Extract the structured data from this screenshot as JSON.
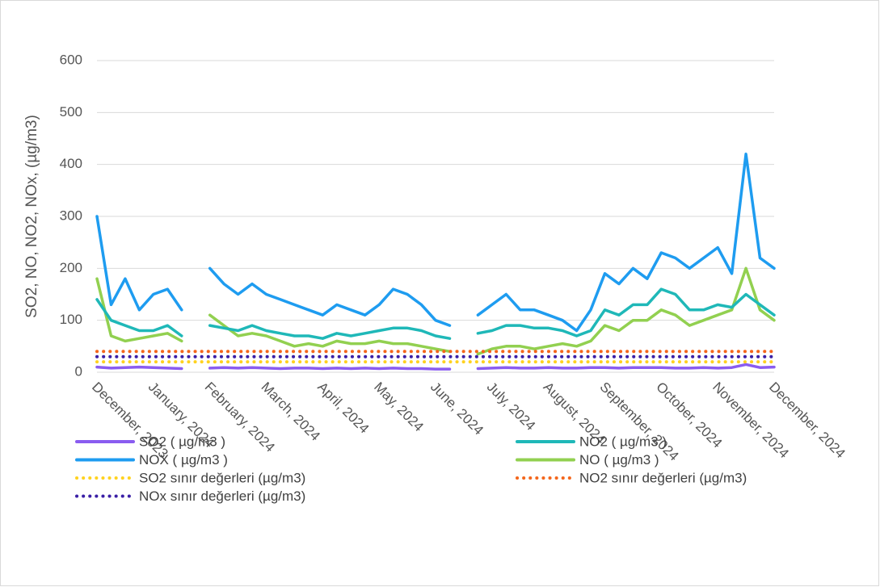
{
  "chart_data": {
    "type": "line",
    "y_label": "SO2, NO, NO2, NOx, (µg/m3)",
    "xticks": [
      "December, 2023",
      "January, 2024",
      "February, 2024",
      "March, 2024",
      "April, 2024",
      "May, 2024",
      "June, 2024",
      "July, 2024",
      "August, 2024",
      "September, 2024",
      "October, 2024",
      "November, 2024",
      "December, 2024"
    ],
    "ylim": [
      0,
      600
    ],
    "yticks": [
      0,
      100,
      200,
      300,
      400,
      500,
      600
    ],
    "grid": true,
    "series": [
      {
        "name": "SO2 ( µg/m3 )",
        "color": "#8a5cf0",
        "style": "solid",
        "values": [
          10,
          8,
          9,
          10,
          9,
          8,
          7,
          null,
          8,
          9,
          8,
          9,
          8,
          7,
          8,
          8,
          7,
          8,
          7,
          8,
          7,
          8,
          7,
          7,
          6,
          6,
          null,
          7,
          8,
          9,
          8,
          8,
          9,
          8,
          8,
          9,
          9,
          8,
          9,
          9,
          9,
          8,
          8,
          9,
          8,
          9,
          15,
          9,
          10
        ]
      },
      {
        "name": "NO2 ( µg/m3 )",
        "color": "#1fb8b8",
        "style": "solid",
        "values": [
          140,
          100,
          90,
          80,
          80,
          90,
          70,
          null,
          90,
          85,
          80,
          90,
          80,
          75,
          70,
          70,
          65,
          75,
          70,
          75,
          80,
          85,
          85,
          80,
          70,
          65,
          null,
          75,
          80,
          90,
          90,
          85,
          85,
          80,
          70,
          80,
          120,
          110,
          130,
          130,
          160,
          150,
          120,
          120,
          130,
          125,
          150,
          130,
          110
        ]
      },
      {
        "name": "NOX ( µg/m3 )",
        "color": "#1e9cf0",
        "style": "solid",
        "values": [
          300,
          130,
          180,
          120,
          150,
          160,
          120,
          null,
          200,
          170,
          150,
          170,
          150,
          140,
          130,
          120,
          110,
          130,
          120,
          110,
          130,
          160,
          150,
          130,
          100,
          90,
          null,
          110,
          130,
          150,
          120,
          120,
          110,
          100,
          80,
          120,
          190,
          170,
          200,
          180,
          230,
          220,
          200,
          220,
          240,
          190,
          420,
          220,
          200
        ]
      },
      {
        "name": "NO ( µg/m3 )",
        "color": "#92d050",
        "style": "solid",
        "values": [
          180,
          70,
          60,
          65,
          70,
          75,
          60,
          null,
          110,
          90,
          70,
          75,
          70,
          60,
          50,
          55,
          50,
          60,
          55,
          55,
          60,
          55,
          55,
          50,
          45,
          40,
          null,
          35,
          45,
          50,
          50,
          45,
          50,
          55,
          50,
          60,
          90,
          80,
          100,
          100,
          120,
          110,
          90,
          100,
          110,
          120,
          200,
          120,
          100
        ]
      },
      {
        "name": "SO2 sınır değerleri (µg/m3)",
        "color": "#ffd21f",
        "style": "dotted",
        "values": [
          20,
          20,
          20,
          20,
          20,
          20,
          20,
          20,
          20,
          20,
          20,
          20,
          20,
          20,
          20,
          20,
          20,
          20,
          20,
          20,
          20,
          20,
          20,
          20,
          20,
          20,
          20,
          20,
          20,
          20,
          20,
          20,
          20,
          20,
          20,
          20,
          20,
          20,
          20,
          20,
          20,
          20,
          20,
          20,
          20,
          20,
          20,
          20,
          20
        ]
      },
      {
        "name": "NO2 sınır değerleri (µg/m3)",
        "color": "#f4661b",
        "style": "dotted",
        "values": [
          40,
          40,
          40,
          40,
          40,
          40,
          40,
          40,
          40,
          40,
          40,
          40,
          40,
          40,
          40,
          40,
          40,
          40,
          40,
          40,
          40,
          40,
          40,
          40,
          40,
          40,
          40,
          40,
          40,
          40,
          40,
          40,
          40,
          40,
          40,
          40,
          40,
          40,
          40,
          40,
          40,
          40,
          40,
          40,
          40,
          40,
          40,
          40,
          40
        ]
      },
      {
        "name": "NOx sınır değerleri (µg/m3)",
        "color": "#3a1fa6",
        "style": "dotted",
        "values": [
          30,
          30,
          30,
          30,
          30,
          30,
          30,
          30,
          30,
          30,
          30,
          30,
          30,
          30,
          30,
          30,
          30,
          30,
          30,
          30,
          30,
          30,
          30,
          30,
          30,
          30,
          30,
          30,
          30,
          30,
          30,
          30,
          30,
          30,
          30,
          30,
          30,
          30,
          30,
          30,
          30,
          30,
          30,
          30,
          30,
          30,
          30,
          30,
          30
        ]
      }
    ]
  }
}
